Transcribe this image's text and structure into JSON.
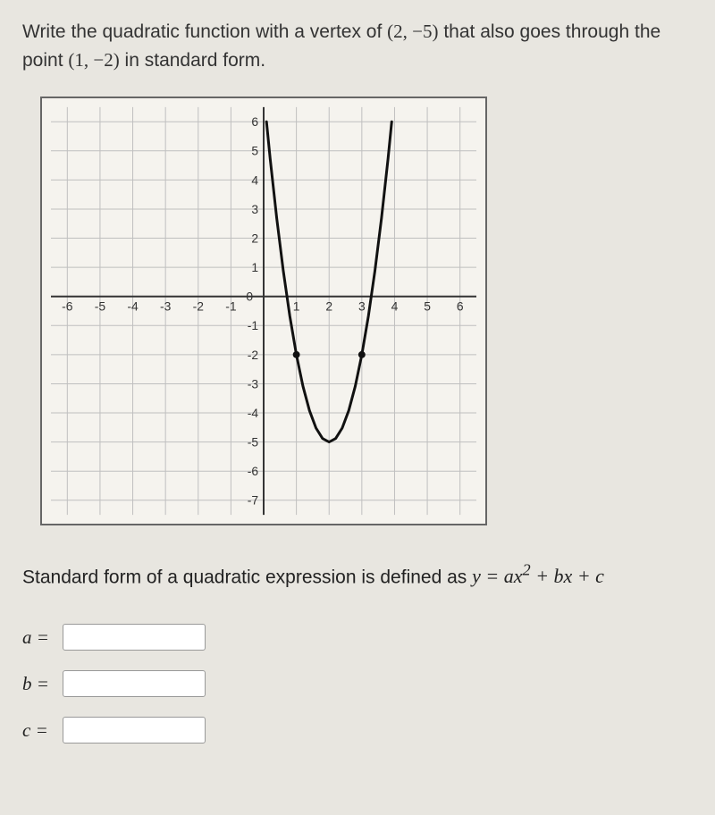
{
  "question": {
    "line1_prefix": "Write the quadratic function with a vertex of ",
    "vertex": "(2, −5)",
    "line1_suffix": " that also goes through the",
    "line2_prefix": "point ",
    "point": "(1, −2)",
    "line2_suffix": " in standard form."
  },
  "chart": {
    "type": "line",
    "xmin": -6.5,
    "xmax": 6.5,
    "ymin": -7.5,
    "ymax": 6.5,
    "xticks": [
      -6,
      -5,
      -4,
      -3,
      -2,
      -1,
      0,
      1,
      2,
      3,
      4,
      5,
      6
    ],
    "yticks": [
      -7,
      -6,
      -5,
      -4,
      -3,
      -2,
      -1,
      0,
      1,
      2,
      3,
      4,
      5,
      6
    ],
    "curve_x": [
      0.087,
      0.2,
      0.4,
      0.6,
      0.8,
      1.0,
      1.2,
      1.4,
      1.6,
      1.8,
      2.0,
      2.2,
      2.4,
      2.6,
      2.8,
      3.0,
      3.2,
      3.4,
      3.6,
      3.8,
      3.913
    ],
    "curve_y": [
      6.0,
      4.72,
      2.68,
      0.88,
      -0.68,
      -2.0,
      -3.08,
      -3.92,
      -4.52,
      -4.88,
      -5.0,
      -4.88,
      -4.52,
      -3.92,
      -3.08,
      -2.0,
      -0.68,
      0.88,
      2.68,
      4.72,
      6.0
    ],
    "grid_color": "#bfbfbf",
    "axis_color": "#333333",
    "curve_color": "#111111",
    "curve_width": 3,
    "background_color": "#f5f3ee",
    "tick_fontsize": 14,
    "dot_points": [
      [
        1,
        -2
      ],
      [
        3,
        -2
      ]
    ],
    "dot_color": "#111111",
    "dot_radius": 4
  },
  "standard_form": {
    "prefix": "Standard form of a quadratic expression is defined as ",
    "formula_y": "y",
    "formula_eq": " = ",
    "formula_a": "a",
    "formula_x2": "x",
    "formula_sup": "2",
    "formula_plus1": " + ",
    "formula_b": "b",
    "formula_x": "x",
    "formula_plus2": " + ",
    "formula_c": "c"
  },
  "answers": {
    "a_label": "a =",
    "b_label": "b =",
    "c_label": "c =",
    "a_value": "",
    "b_value": "",
    "c_value": ""
  }
}
